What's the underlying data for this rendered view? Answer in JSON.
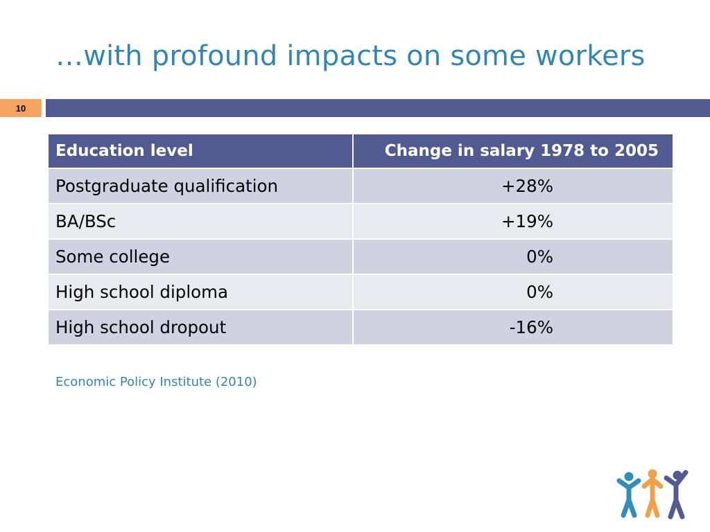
{
  "slide": {
    "title": "…with profound impacts on some workers",
    "number": "10",
    "source": "Economic Policy Institute (2010)"
  },
  "table": {
    "headers": [
      "Education level",
      "Change in salary 1978 to 2005"
    ],
    "rows": [
      [
        "Postgraduate qualification",
        "+28%"
      ],
      [
        "BA/BSc",
        "+19%"
      ],
      [
        "Some college",
        "0%"
      ],
      [
        "High school diploma",
        "0%"
      ],
      [
        "High school dropout",
        "-16%"
      ]
    ]
  },
  "colors": {
    "title": "#3385b5",
    "band": "#515b92",
    "slide_number_bg": "#f4a460",
    "row_odd": "#d0d2e1",
    "row_even": "#e9eaf0",
    "logo_figures": [
      "#2f8fb8",
      "#f0a04b",
      "#515b92"
    ]
  },
  "logo": {
    "icon": "three-people-icon"
  }
}
